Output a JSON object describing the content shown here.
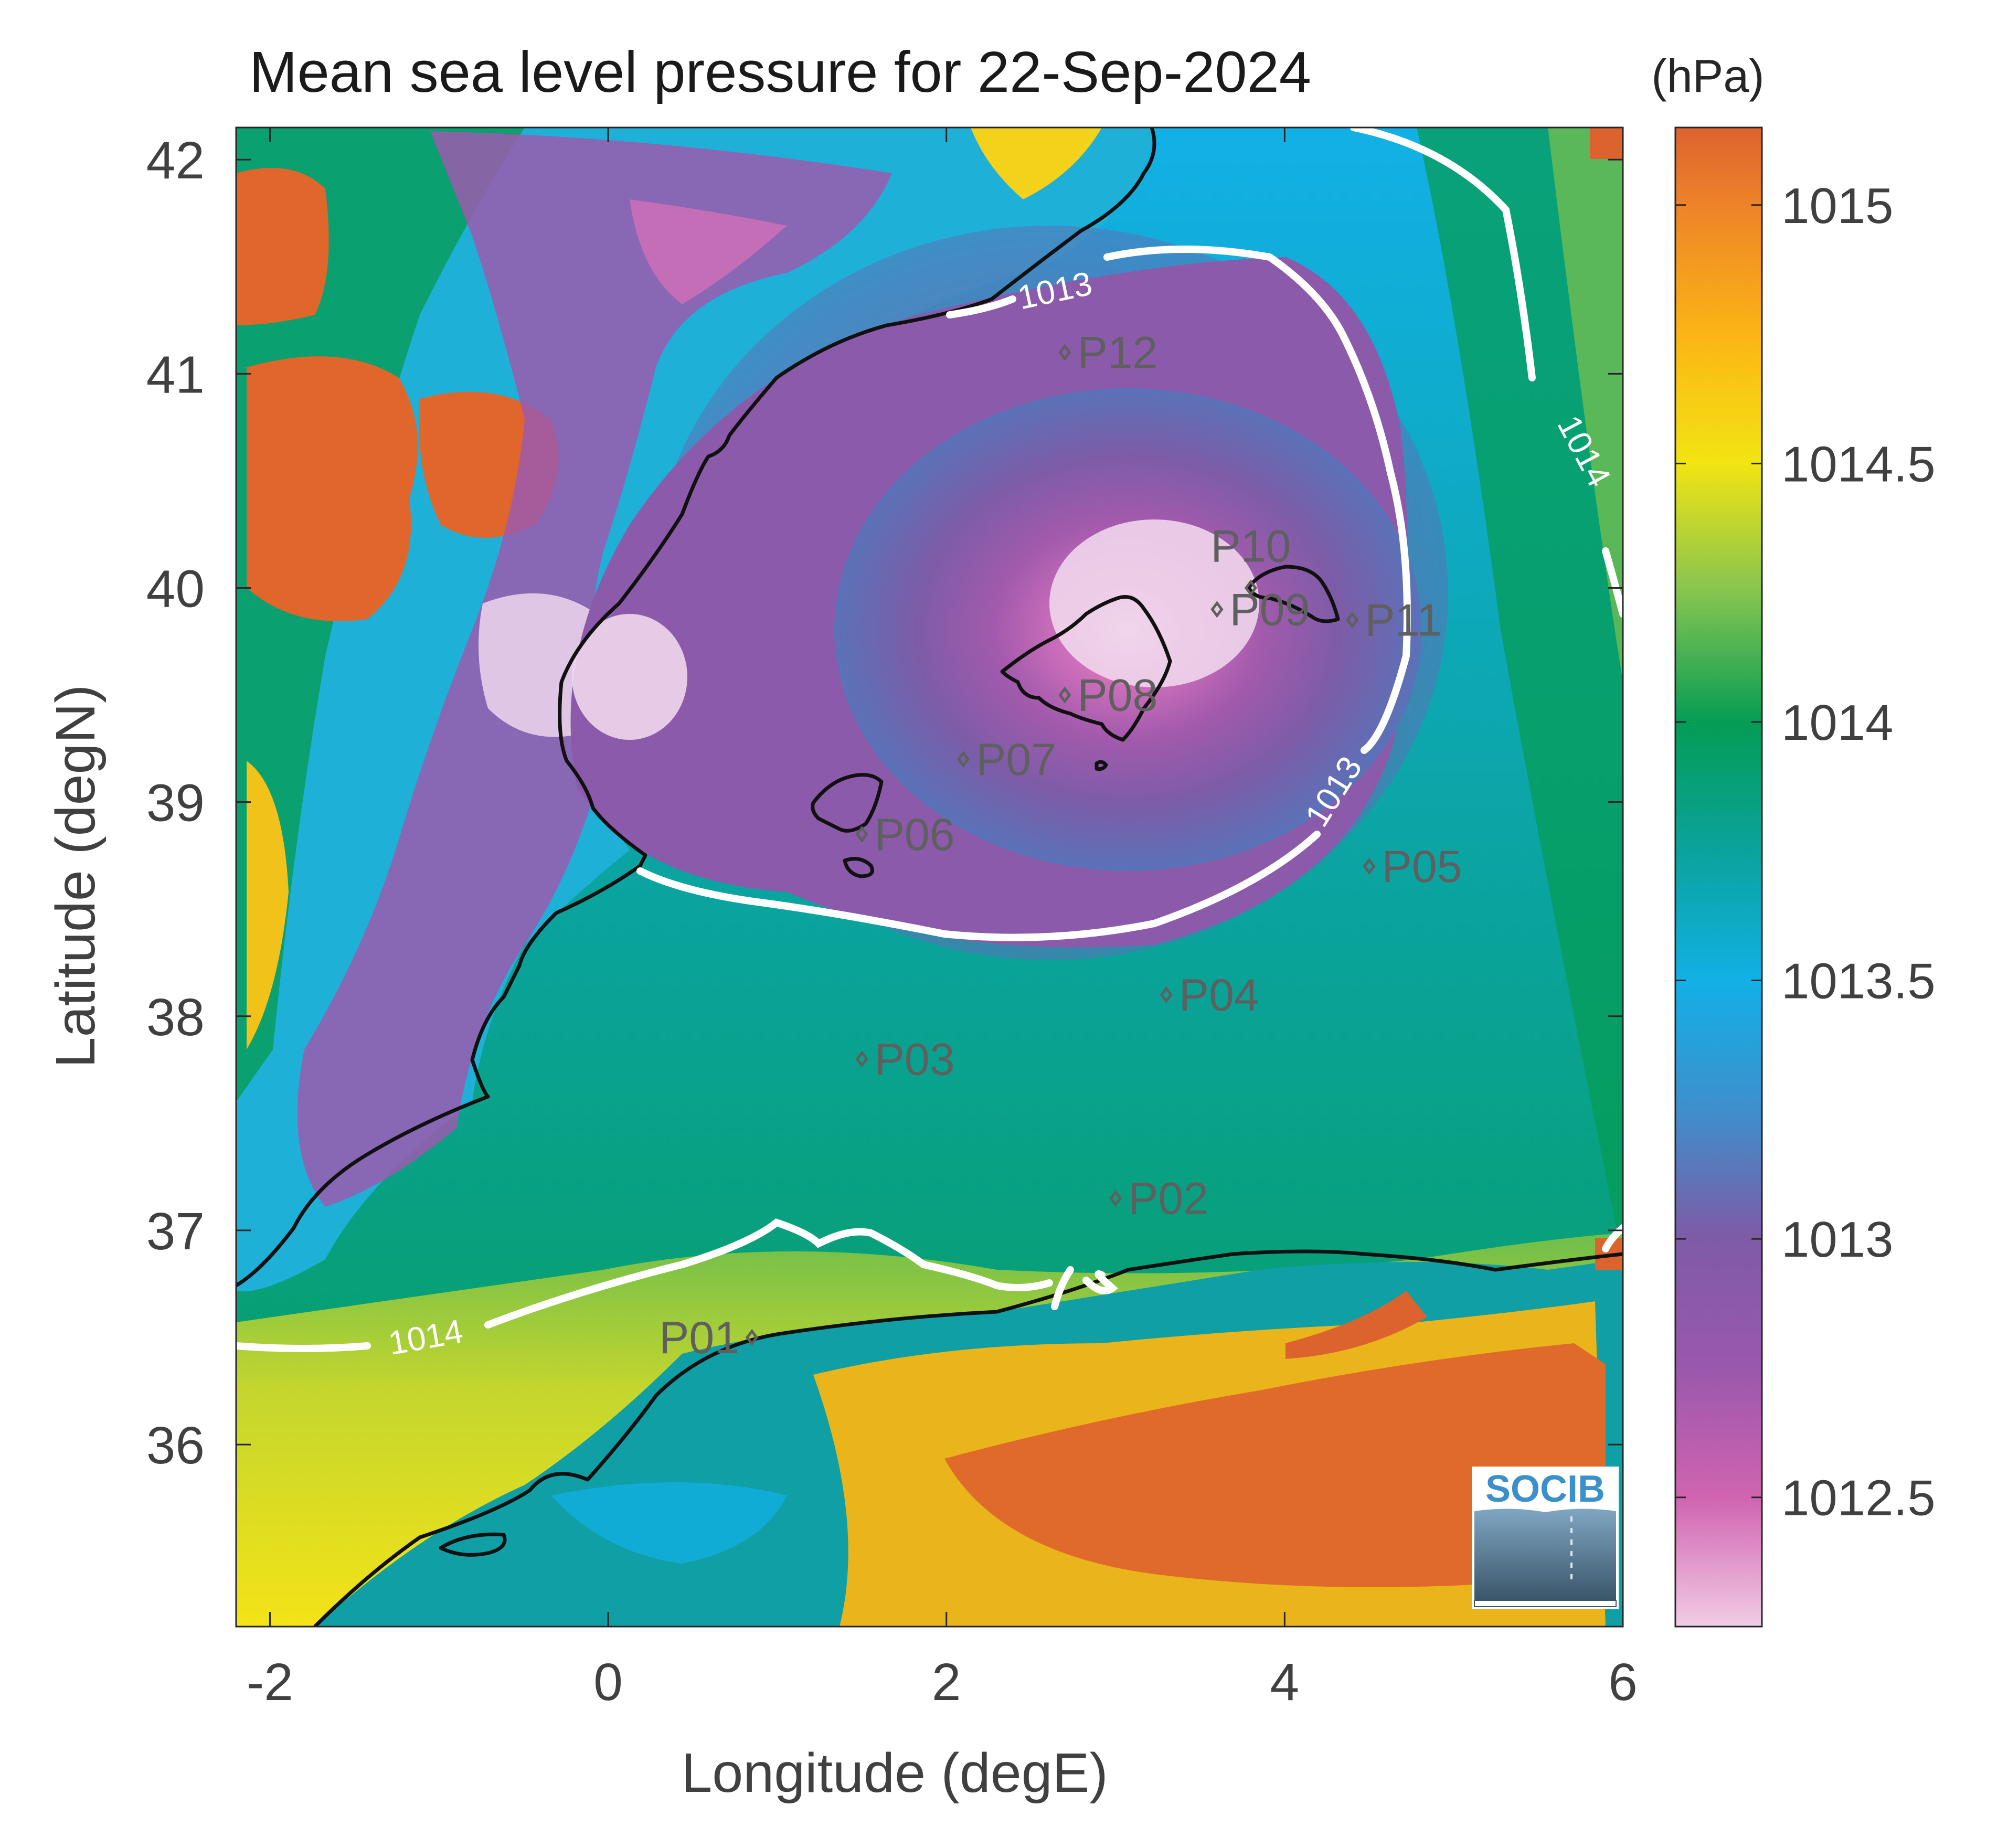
{
  "chart_data": {
    "type": "heatmap",
    "title": "Mean sea level pressure for 22-Sep-2024",
    "xlabel": "Longitude (degE)",
    "ylabel": "Latitude (degN)",
    "xlim": [
      -2.2,
      6.0
    ],
    "ylim": [
      35.15,
      42.15
    ],
    "x_ticks": [
      "-2",
      "0",
      "2",
      "4",
      "6"
    ],
    "x_tick_values": [
      -2,
      0,
      2,
      4,
      6
    ],
    "y_ticks": [
      "36",
      "37",
      "38",
      "39",
      "40",
      "41",
      "42"
    ],
    "y_tick_values": [
      36,
      37,
      38,
      39,
      40,
      41,
      42
    ],
    "colorbar": {
      "unit": "(hPa)",
      "range": [
        1012.25,
        1015.15
      ],
      "ticks": [
        "1012.5",
        "1013",
        "1013.5",
        "1014",
        "1014.5",
        "1015"
      ],
      "tick_values": [
        1012.5,
        1013,
        1013.5,
        1014,
        1014.5,
        1015
      ],
      "colormap": [
        "#f2cce6",
        "#d064b0",
        "#9b58ac",
        "#7e5ba6",
        "#3e8fcc",
        "#12b0e6",
        "#0aa39a",
        "#059c55",
        "#86c450",
        "#f2e413",
        "#fbb615",
        "#ee8328",
        "#dd632e"
      ]
    },
    "contours": [
      {
        "level": "1013",
        "labels": [
          "1013",
          "1013"
        ]
      },
      {
        "level": "1014",
        "labels": [
          "1014",
          "1014"
        ]
      }
    ],
    "stations": [
      {
        "name": "P01",
        "lon": 0.85,
        "lat": 36.5
      },
      {
        "name": "P02",
        "lon": 3.0,
        "lat": 37.15
      },
      {
        "name": "P03",
        "lon": 1.5,
        "lat": 37.8
      },
      {
        "name": "P04",
        "lon": 3.3,
        "lat": 38.1
      },
      {
        "name": "P05",
        "lon": 4.5,
        "lat": 38.7
      },
      {
        "name": "P06",
        "lon": 1.5,
        "lat": 38.85
      },
      {
        "name": "P07",
        "lon": 2.1,
        "lat": 39.2
      },
      {
        "name": "P08",
        "lon": 2.7,
        "lat": 39.5
      },
      {
        "name": "P09",
        "lon": 3.6,
        "lat": 39.9
      },
      {
        "name": "P10",
        "lon": 3.8,
        "lat": 40.0
      },
      {
        "name": "P11",
        "lon": 4.4,
        "lat": 39.85
      },
      {
        "name": "P12",
        "lon": 2.7,
        "lat": 41.1
      }
    ],
    "pressure_center": {
      "lon": 3.2,
      "lat": 39.7,
      "value": 1012.25
    },
    "grid": false
  },
  "logo": {
    "text": "SOCIB"
  }
}
